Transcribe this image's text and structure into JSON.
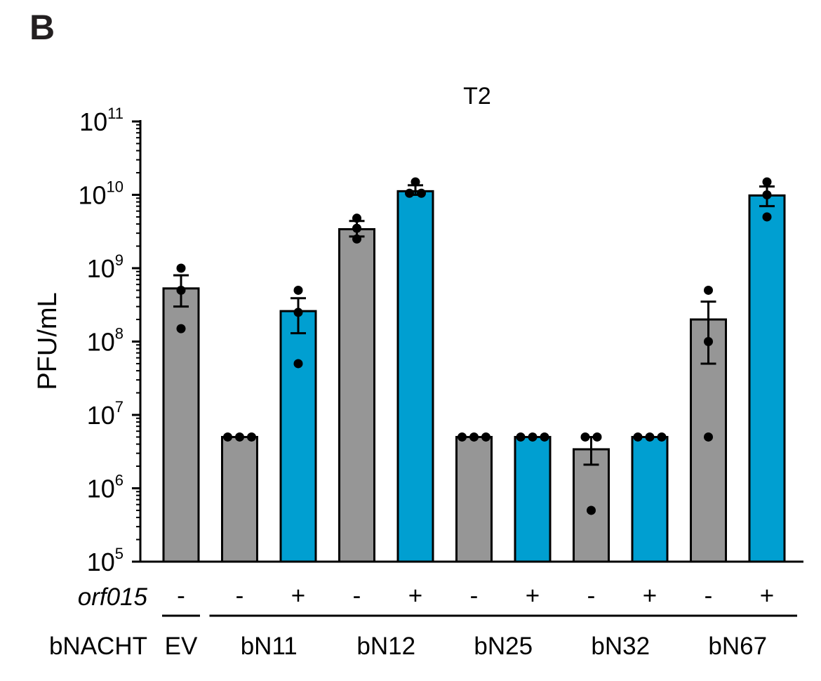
{
  "panel_label": "B",
  "chart_data": {
    "type": "bar",
    "title": "T2",
    "ylabel": "PFU/mL",
    "yscale": "log",
    "ylim": [
      100000,
      100000000000
    ],
    "y_ticks": [
      {
        "base": "10",
        "exp": "5"
      },
      {
        "base": "10",
        "exp": "6"
      },
      {
        "base": "10",
        "exp": "7"
      },
      {
        "base": "10",
        "exp": "8"
      },
      {
        "base": "10",
        "exp": "9"
      },
      {
        "base": "10",
        "exp": "10"
      },
      {
        "base": "10",
        "exp": "11"
      }
    ],
    "row_labels": {
      "orf": "orf015",
      "group": "bNACHT"
    },
    "bars": [
      {
        "group": "EV",
        "orf015": "-",
        "value": 530000000,
        "err_low": 300000000,
        "err_high": 800000000,
        "points": [
          1000000000,
          500000000,
          150000000
        ],
        "color": "#969696"
      },
      {
        "group": "bN11",
        "orf015": "-",
        "value": 5000000,
        "err_low": 5000000,
        "err_high": 5000000,
        "points": [
          5000000,
          5000000,
          5000000
        ],
        "color": "#969696"
      },
      {
        "group": "bN11",
        "orf015": "+",
        "value": 260000000,
        "err_low": 130000000,
        "err_high": 390000000,
        "points": [
          500000000,
          250000000,
          50000000
        ],
        "color": "#009fd1"
      },
      {
        "group": "bN12",
        "orf015": "-",
        "value": 3400000000,
        "err_low": 2700000000,
        "err_high": 4400000000,
        "points": [
          4800000000,
          3500000000,
          2500000000
        ],
        "color": "#969696"
      },
      {
        "group": "bN12",
        "orf015": "+",
        "value": 11200000000,
        "err_low": 10000000000,
        "err_high": 13500000000,
        "points": [
          15000000000,
          10500000000,
          10500000000
        ],
        "color": "#009fd1"
      },
      {
        "group": "bN25",
        "orf015": "-",
        "value": 5000000,
        "err_low": 5000000,
        "err_high": 5000000,
        "points": [
          5000000,
          5000000,
          5000000
        ],
        "color": "#969696"
      },
      {
        "group": "bN25",
        "orf015": "+",
        "value": 5000000,
        "err_low": 5000000,
        "err_high": 5000000,
        "points": [
          5000000,
          5000000,
          5000000
        ],
        "color": "#009fd1"
      },
      {
        "group": "bN32",
        "orf015": "-",
        "value": 3400000,
        "err_low": 2100000,
        "err_high": 5000000,
        "points": [
          5000000,
          5000000,
          500000
        ],
        "color": "#969696"
      },
      {
        "group": "bN32",
        "orf015": "+",
        "value": 5000000,
        "err_low": 5000000,
        "err_high": 5000000,
        "points": [
          5000000,
          5000000,
          5000000
        ],
        "color": "#009fd1"
      },
      {
        "group": "bN67",
        "orf015": "-",
        "value": 200000000,
        "err_low": 50000000,
        "err_high": 350000000,
        "points": [
          500000000,
          100000000,
          5000000
        ],
        "color": "#969696"
      },
      {
        "group": "bN67",
        "orf015": "+",
        "value": 9800000000,
        "err_low": 7000000000,
        "err_high": 13000000000,
        "points": [
          15000000000,
          10000000000,
          5000000000
        ],
        "color": "#009fd1"
      }
    ],
    "groups": [
      "EV",
      "bN11",
      "bN12",
      "bN25",
      "bN32",
      "bN67"
    ]
  }
}
